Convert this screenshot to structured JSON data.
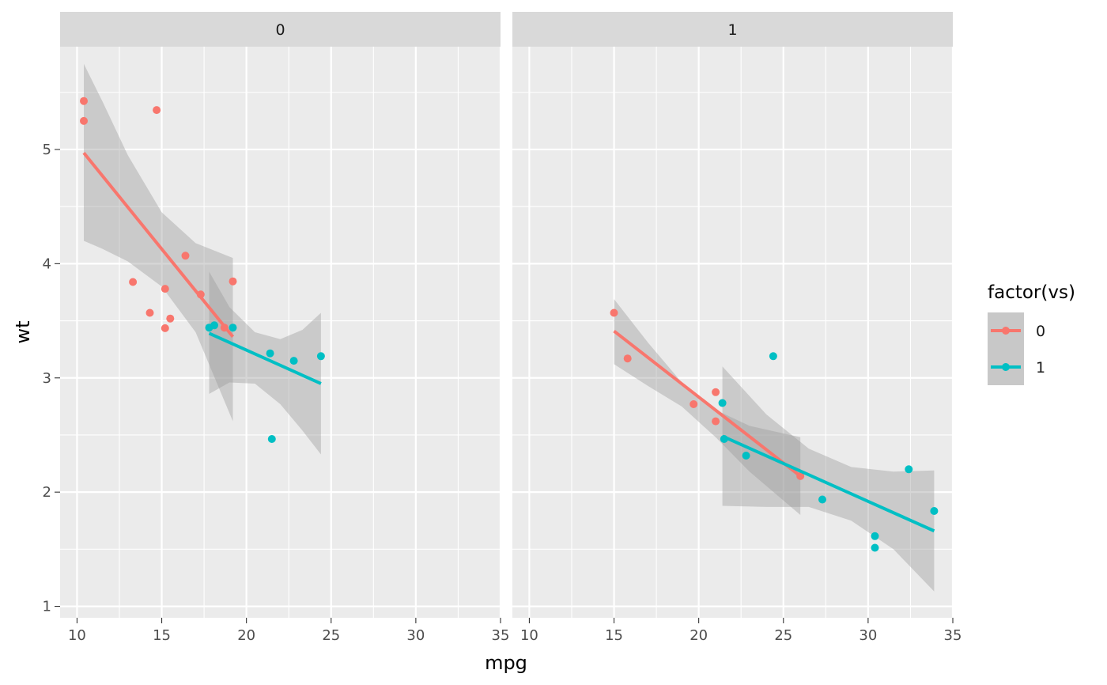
{
  "chart_data": {
    "type": "scatter",
    "title": "",
    "xlabel": "mpg",
    "ylabel": "wt",
    "xlim": [
      9,
      35
    ],
    "ylim": [
      0.9,
      5.9
    ],
    "x_ticks": [
      "10",
      "15",
      "20",
      "25",
      "30",
      "35"
    ],
    "y_ticks": [
      "1",
      "2",
      "3",
      "4",
      "5"
    ],
    "grid": true,
    "legend_position": "right",
    "legend": {
      "title": "factor(vs)",
      "entries": [
        {
          "label": "0",
          "color": "#F8766D"
        },
        {
          "label": "1",
          "color": "#00BFC4"
        }
      ]
    },
    "panels": [
      {
        "strip": "0",
        "series": [
          {
            "name": "0",
            "color": "#F8766D",
            "points": [
              [
                10.4,
                5.424
              ],
              [
                10.4,
                5.25
              ],
              [
                14.7,
                5.345
              ],
              [
                13.3,
                3.84
              ],
              [
                14.3,
                3.57
              ],
              [
                15.2,
                3.78
              ],
              [
                15.2,
                3.435
              ],
              [
                15.5,
                3.52
              ],
              [
                16.4,
                4.07
              ],
              [
                17.3,
                3.73
              ],
              [
                18.7,
                3.44
              ],
              [
                19.2,
                3.845
              ]
            ],
            "fit": {
              "x": [
                10.4,
                19.2
              ],
              "y": [
                4.97,
                3.36
              ]
            },
            "band": {
              "x": [
                10.4,
                11.5,
                13.0,
                15.0,
                17.0,
                19.2
              ],
              "upper": [
                5.75,
                5.42,
                4.95,
                4.45,
                4.18,
                4.05
              ],
              "lower": [
                4.2,
                4.13,
                4.02,
                3.8,
                3.4,
                2.62
              ]
            }
          },
          {
            "name": "1",
            "color": "#00BFC4",
            "points": [
              [
                17.8,
                3.44
              ],
              [
                18.1,
                3.46
              ],
              [
                19.2,
                3.44
              ],
              [
                21.4,
                3.215
              ],
              [
                22.8,
                3.15
              ],
              [
                24.4,
                3.19
              ],
              [
                21.5,
                2.465
              ]
            ],
            "fit": {
              "x": [
                17.8,
                24.4
              ],
              "y": [
                3.39,
                2.95
              ]
            },
            "band": {
              "x": [
                17.8,
                19.0,
                20.5,
                22.0,
                23.3,
                24.4
              ],
              "upper": [
                3.93,
                3.62,
                3.4,
                3.34,
                3.42,
                3.57
              ],
              "lower": [
                2.86,
                2.96,
                2.95,
                2.77,
                2.54,
                2.33
              ]
            }
          }
        ]
      },
      {
        "strip": "1",
        "series": [
          {
            "name": "0",
            "color": "#F8766D",
            "points": [
              [
                15.0,
                3.57
              ],
              [
                15.8,
                3.17
              ],
              [
                19.7,
                2.77
              ],
              [
                21.0,
                2.875
              ],
              [
                21.0,
                2.62
              ],
              [
                26.0,
                2.14
              ]
            ],
            "fit": {
              "x": [
                15.0,
                26.0
              ],
              "y": [
                3.41,
                2.14
              ]
            },
            "band": {
              "x": [
                15.0,
                17.0,
                19.0,
                21.0,
                23.0,
                26.0
              ],
              "upper": [
                3.69,
                3.31,
                2.96,
                2.72,
                2.58,
                2.48
              ],
              "lower": [
                3.12,
                2.93,
                2.75,
                2.48,
                2.18,
                1.8
              ]
            }
          },
          {
            "name": "1",
            "color": "#00BFC4",
            "points": [
              [
                21.4,
                2.78
              ],
              [
                22.8,
                2.32
              ],
              [
                24.4,
                3.19
              ],
              [
                27.3,
                1.935
              ],
              [
                30.4,
                1.615
              ],
              [
                30.4,
                1.513
              ],
              [
                32.4,
                2.2
              ],
              [
                33.9,
                1.835
              ],
              [
                21.5,
                2.465
              ]
            ],
            "fit": {
              "x": [
                21.4,
                33.9
              ],
              "y": [
                2.49,
                1.66
              ]
            },
            "band": {
              "x": [
                21.4,
                24.0,
                26.5,
                29.0,
                31.5,
                33.9
              ],
              "upper": [
                3.1,
                2.68,
                2.38,
                2.22,
                2.18,
                2.19
              ],
              "lower": [
                1.88,
                1.87,
                1.87,
                1.75,
                1.5,
                1.13
              ]
            }
          }
        ]
      }
    ]
  }
}
